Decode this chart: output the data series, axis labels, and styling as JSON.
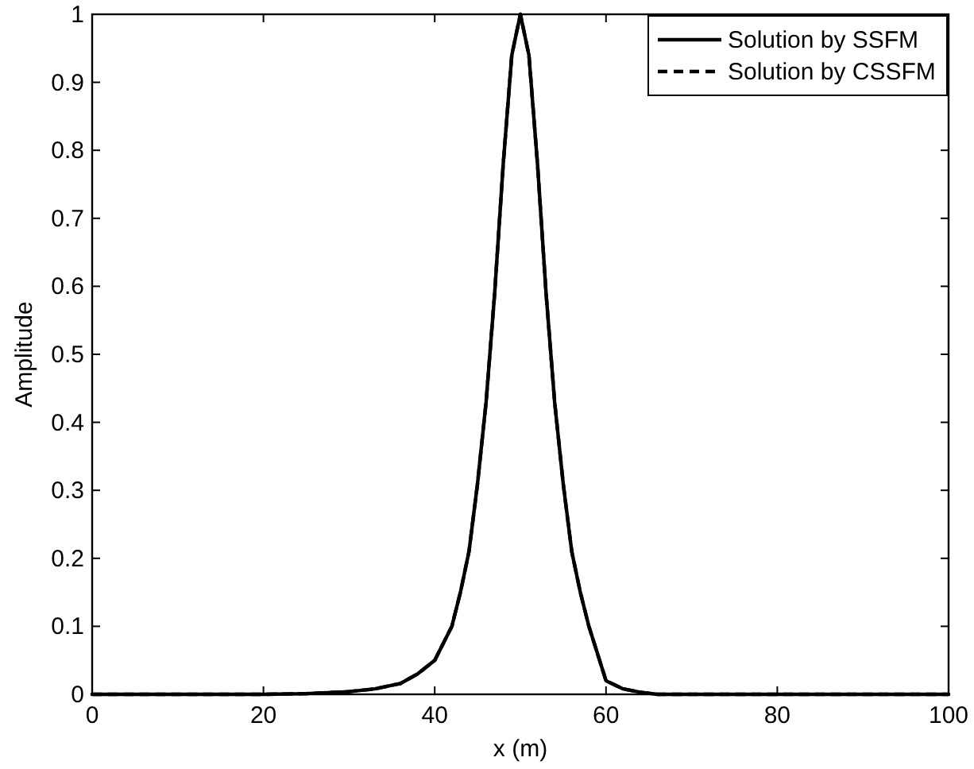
{
  "chart_data": {
    "type": "line",
    "xlabel": "x (m)",
    "ylabel": "Amplitude",
    "x": [
      0,
      10,
      20,
      25,
      30,
      33,
      36,
      38,
      40,
      42,
      43,
      44,
      45,
      46,
      47,
      48,
      49,
      50,
      51,
      52,
      53,
      54,
      55,
      56,
      57,
      58,
      60,
      62,
      64,
      66,
      70,
      80,
      90,
      100
    ],
    "series": [
      {
        "name": "Solution by SSFM",
        "color": "#000000",
        "line_style": "solid",
        "values": [
          0,
          0,
          0,
          0.001,
          0.004,
          0.008,
          0.016,
          0.03,
          0.05,
          0.1,
          0.15,
          0.21,
          0.31,
          0.43,
          0.59,
          0.78,
          0.94,
          1,
          0.94,
          0.78,
          0.59,
          0.43,
          0.31,
          0.21,
          0.15,
          0.1,
          0.02,
          0.008,
          0.003,
          0,
          0,
          0,
          0,
          0
        ]
      },
      {
        "name": "Solution by CSSFM",
        "color": "#000000",
        "line_style": "dashed",
        "values": [
          0,
          0,
          0,
          0.001,
          0.004,
          0.008,
          0.016,
          0.03,
          0.05,
          0.1,
          0.15,
          0.21,
          0.31,
          0.43,
          0.59,
          0.78,
          0.94,
          1,
          0.94,
          0.78,
          0.59,
          0.43,
          0.31,
          0.21,
          0.15,
          0.1,
          0.02,
          0.008,
          0.003,
          0,
          0,
          0,
          0,
          0
        ]
      }
    ],
    "xlim": [
      0,
      100
    ],
    "xticks": [
      0,
      20,
      40,
      60,
      80,
      100
    ],
    "ylim": [
      0,
      1
    ],
    "yticks": [
      0,
      0.1,
      0.2,
      0.3,
      0.4,
      0.5,
      0.6,
      0.7,
      0.8,
      0.9,
      1
    ],
    "legend": "top right",
    "grid": false
  }
}
